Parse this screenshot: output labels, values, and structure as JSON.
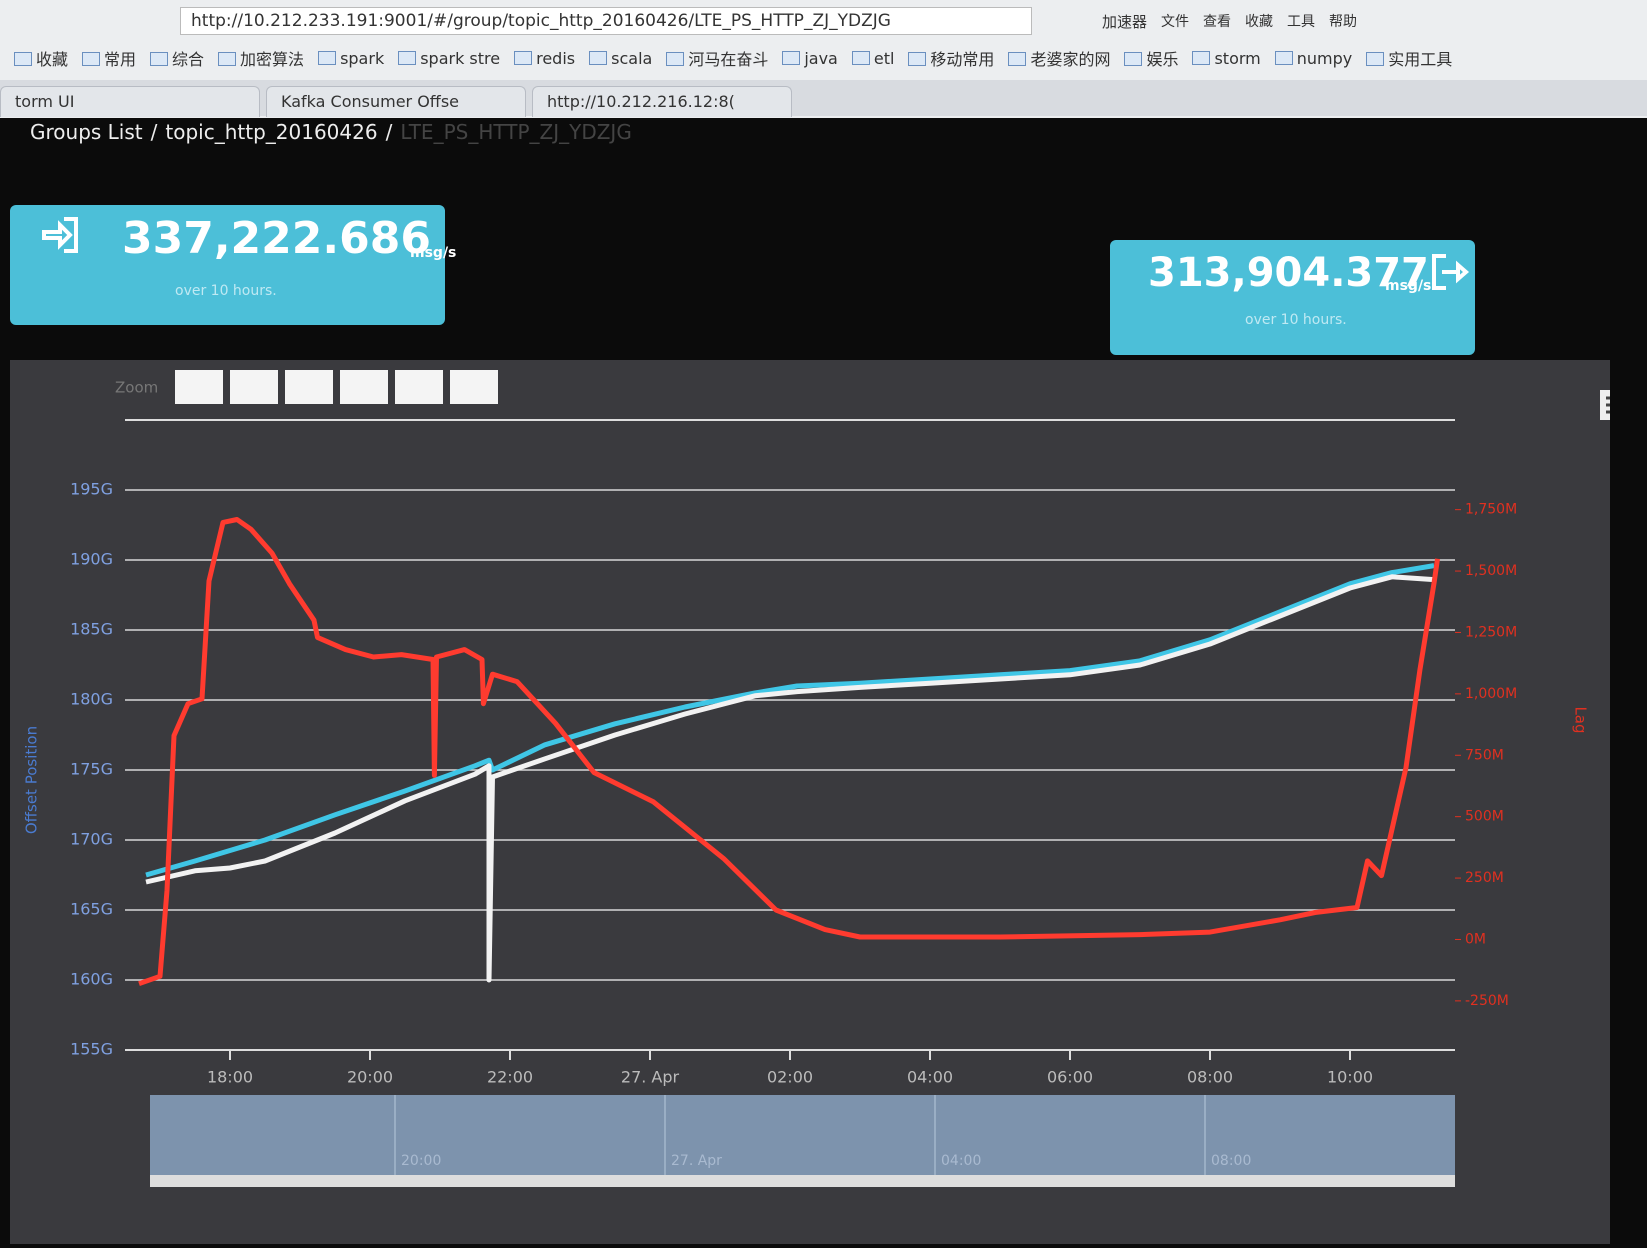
{
  "browser": {
    "url": "http://10.212.233.191:9001/#/group/topic_http_20160426/LTE_PS_HTTP_ZJ_YDZJG",
    "accelerator": "加速器",
    "menu": [
      "文件",
      "查看",
      "收藏",
      "工具",
      "帮助"
    ],
    "bookmarks": [
      "收藏",
      "常用",
      "综合",
      "加密算法",
      "spark",
      "spark stre",
      "redis",
      "scala",
      "河马在奋斗",
      "java",
      "etl",
      "移动常用",
      "老婆家的网",
      "娱乐",
      "storm",
      "numpy",
      "实用工具"
    ],
    "tabs": [
      "torm UI",
      "Kafka Consumer Offse",
      "http://10.212.216.12:8("
    ]
  },
  "breadcrumb": [
    "Groups List",
    "topic_http_20160426",
    "LTE_PS_HTTP_ZJ_YDZJG"
  ],
  "stats": [
    {
      "value": "337,222.686",
      "unit": "msg/s",
      "note": "over 10 hours."
    },
    {
      "value": "313,904.377",
      "unit": "msg/s",
      "note": "over 10 hours."
    }
  ],
  "zoom_label": "Zoom",
  "chart_data": {
    "type": "line",
    "y_label": "Offset Position",
    "y2_label": "Lag",
    "xlim": [
      16.5,
      35.5
    ],
    "xticks": [
      {
        "value": 18,
        "label": "18:00"
      },
      {
        "value": 20,
        "label": "20:00"
      },
      {
        "value": 22,
        "label": "22:00"
      },
      {
        "value": 24,
        "label": "27. Apr"
      },
      {
        "value": 26,
        "label": "02:00"
      },
      {
        "value": 28,
        "label": "04:00"
      },
      {
        "value": 30,
        "label": "06:00"
      },
      {
        "value": 32,
        "label": "08:00"
      },
      {
        "value": 34,
        "label": "10:00"
      }
    ],
    "ylim": [
      155,
      200
    ],
    "yticks": [
      {
        "value": 155,
        "label": "155G"
      },
      {
        "value": 160,
        "label": "160G"
      },
      {
        "value": 165,
        "label": "165G"
      },
      {
        "value": 170,
        "label": "170G"
      },
      {
        "value": 175,
        "label": "175G"
      },
      {
        "value": 180,
        "label": "180G"
      },
      {
        "value": 185,
        "label": "185G"
      },
      {
        "value": 190,
        "label": "190G"
      },
      {
        "value": 195,
        "label": "195G"
      }
    ],
    "y2lim": [
      -450,
      2115
    ],
    "y2ticks": [
      {
        "value": -250,
        "label": "-250M"
      },
      {
        "value": 0,
        "label": "0M"
      },
      {
        "value": 250,
        "label": "250M"
      },
      {
        "value": 500,
        "label": "500M"
      },
      {
        "value": 750,
        "label": "750M"
      },
      {
        "value": 1000,
        "label": "1,000M"
      },
      {
        "value": 1250,
        "label": "1,250M"
      },
      {
        "value": 1500,
        "label": "1,500M"
      },
      {
        "value": 1750,
        "label": "1,750M"
      }
    ],
    "grid": true,
    "series": [
      {
        "color": "#3fc6e6",
        "x": [
          16.8,
          17.5,
          18.5,
          19.5,
          20.5,
          21.5,
          21.7,
          21.75,
          22.5,
          23.5,
          24.5,
          25.5,
          26.1,
          27,
          28,
          29,
          30,
          31,
          32,
          33,
          34,
          34.6,
          35.2
        ],
        "values": [
          167.5,
          168.5,
          170,
          171.8,
          173.5,
          175.3,
          175.7,
          175.0,
          176.8,
          178.3,
          179.5,
          180.5,
          181,
          181.2,
          181.5,
          181.8,
          182.1,
          182.8,
          184.3,
          186.3,
          188.3,
          189.1,
          189.6
        ]
      },
      {
        "color": "#f2f2f2",
        "x": [
          16.8,
          17.5,
          18,
          18.5,
          19.5,
          20.5,
          21.5,
          21.7,
          21.7,
          21.75,
          22.5,
          23.5,
          24.5,
          25.5,
          26.1,
          27,
          28,
          29,
          30,
          31,
          32,
          33,
          34,
          34.6,
          35.2
        ],
        "values": [
          167,
          167.8,
          168,
          168.5,
          170.5,
          172.8,
          174.7,
          175.3,
          160,
          174.5,
          175.8,
          177.5,
          179,
          180.3,
          180.6,
          180.9,
          181.2,
          181.5,
          181.8,
          182.5,
          184,
          186,
          188,
          188.8,
          188.6
        ]
      },
      {
        "color": "#ff3b2f",
        "axis": "y2",
        "x": [
          16.7,
          17.0,
          17.1,
          17.2,
          17.4,
          17.6,
          17.7,
          17.9,
          18.1,
          18.3,
          18.6,
          18.85,
          19.2,
          19.25,
          19.65,
          20.05,
          20.45,
          20.9,
          20.92,
          20.95,
          21.35,
          21.6,
          21.62,
          21.75,
          22.1,
          22.65,
          23.2,
          24.05,
          25.05,
          25.8,
          26.5,
          27,
          29,
          31,
          32,
          33,
          33.5,
          34.1,
          34.25,
          34.45,
          34.8,
          35.0,
          35.2,
          35.25
        ],
        "values": [
          -180,
          -150,
          200,
          830,
          960,
          980,
          1460,
          1698,
          1710,
          1670,
          1573,
          1448,
          1300,
          1230,
          1180,
          1150,
          1160,
          1140,
          668,
          1150,
          1180,
          1140,
          960,
          1080,
          1050,
          880,
          680,
          560,
          330,
          120,
          40,
          10,
          10,
          20,
          30,
          80,
          110,
          130,
          320,
          260,
          700,
          1100,
          1450,
          1550
        ]
      }
    ],
    "navigator_labels": [
      "20:00",
      "27. Apr",
      "04:00",
      "08:00"
    ]
  }
}
